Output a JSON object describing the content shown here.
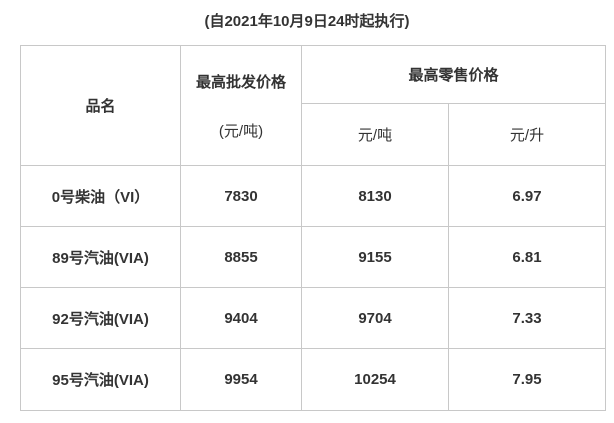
{
  "title": "(自2021年10月9日24时起执行)",
  "table": {
    "header": {
      "name": "品名",
      "wholesale": [
        "最高批发价格",
        "(元/吨)"
      ],
      "retail": "最高零售价格",
      "retail_units": [
        "元/吨",
        "元/升"
      ]
    },
    "rows": [
      [
        "0号柴油（VI）",
        7830,
        8130,
        6.97
      ],
      [
        "89号汽油(VIA)",
        8855,
        9155,
        6.81
      ],
      [
        "92号汽油(VIA)",
        9404,
        9704,
        7.33
      ],
      [
        "95号汽油(VIA)",
        9954,
        10254,
        7.95
      ]
    ]
  }
}
